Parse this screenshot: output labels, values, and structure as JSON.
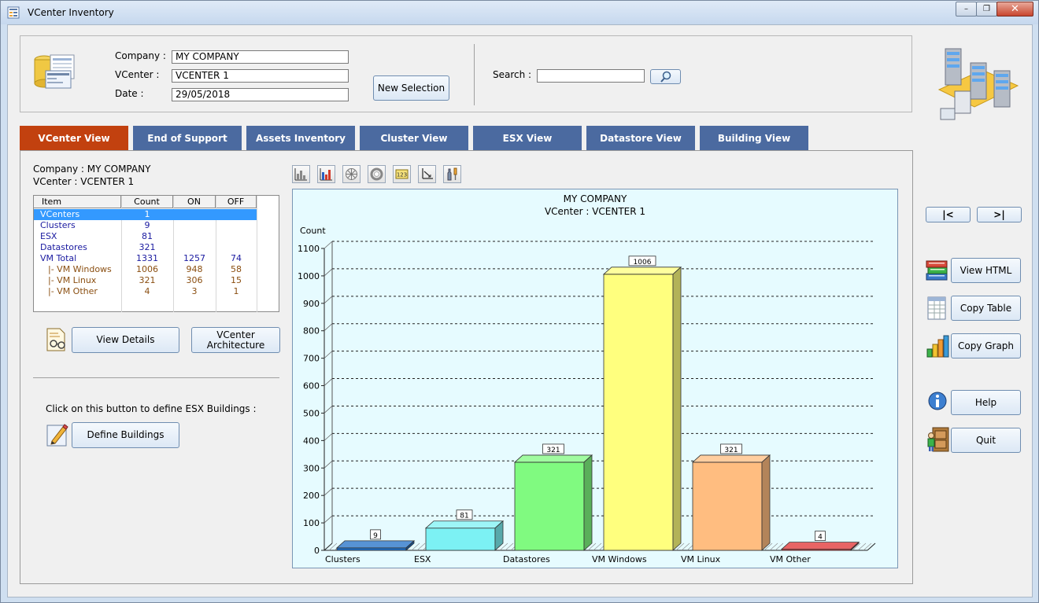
{
  "window": {
    "title": "VCenter Inventory"
  },
  "header": {
    "company_label": "Company :",
    "company_value": "MY COMPANY",
    "vcenter_label": "VCenter :",
    "vcenter_value": "VCENTER 1",
    "date_label": "Date :",
    "date_value": "29/05/2018",
    "new_selection": "New Selection",
    "search_label": "Search :",
    "search_value": ""
  },
  "tabs": [
    {
      "label": "VCenter View",
      "active": true
    },
    {
      "label": "End of Support"
    },
    {
      "label": "Assets Inventory"
    },
    {
      "label": "Cluster View"
    },
    {
      "label": "ESX View"
    },
    {
      "label": "Datastore View"
    },
    {
      "label": "Building View"
    }
  ],
  "info": {
    "company_line": "Company : MY COMPANY",
    "vcenter_line": "VCenter : VCENTER 1"
  },
  "table": {
    "headers": [
      "Item",
      "Count",
      "ON",
      "OFF"
    ],
    "rows": [
      {
        "item": "VCenters",
        "count": "1",
        "on": "",
        "off": ""
      },
      {
        "item": "Clusters",
        "count": "9",
        "on": "",
        "off": ""
      },
      {
        "item": "ESX",
        "count": "81",
        "on": "",
        "off": ""
      },
      {
        "item": "Datastores",
        "count": "321",
        "on": "",
        "off": ""
      },
      {
        "item": "VM Total",
        "count": "1331",
        "on": "1257",
        "off": "74"
      },
      {
        "item": "|- VM Windows",
        "count": "1006",
        "on": "948",
        "off": "58"
      },
      {
        "item": "|- VM Linux",
        "count": "321",
        "on": "306",
        "off": "15"
      },
      {
        "item": "|- VM Other",
        "count": "4",
        "on": "3",
        "off": "1"
      }
    ]
  },
  "buttons": {
    "view_details": "View Details",
    "vcenter_arch": "VCenter Architecture",
    "define_hint": "Click on this button to define ESX Buildings :",
    "define_buildings": "Define Buildings",
    "first": "|<",
    "last": ">|",
    "view_html": "View HTML",
    "copy_table": "Copy Table",
    "copy_graph": "Copy Graph",
    "help": "Help",
    "quit": "Quit"
  },
  "chart_data": {
    "type": "bar",
    "title": "MY COMPANY",
    "subtitle": "VCenter : VCENTER 1",
    "ylabel": "Count",
    "xlabel": "",
    "ylim": [
      0,
      1100
    ],
    "yticks": [
      0,
      100,
      200,
      300,
      400,
      500,
      600,
      700,
      800,
      900,
      1000,
      1100
    ],
    "grid": true,
    "categories": [
      "Clusters",
      "ESX",
      "Datastores",
      "VM Windows",
      "VM Linux",
      "VM Other"
    ],
    "values": [
      9,
      81,
      321,
      1006,
      321,
      4
    ],
    "colors": [
      "#1f6fc7",
      "#7cf1f4",
      "#80fa80",
      "#ffff7e",
      "#ffbd80",
      "#e03030"
    ]
  }
}
